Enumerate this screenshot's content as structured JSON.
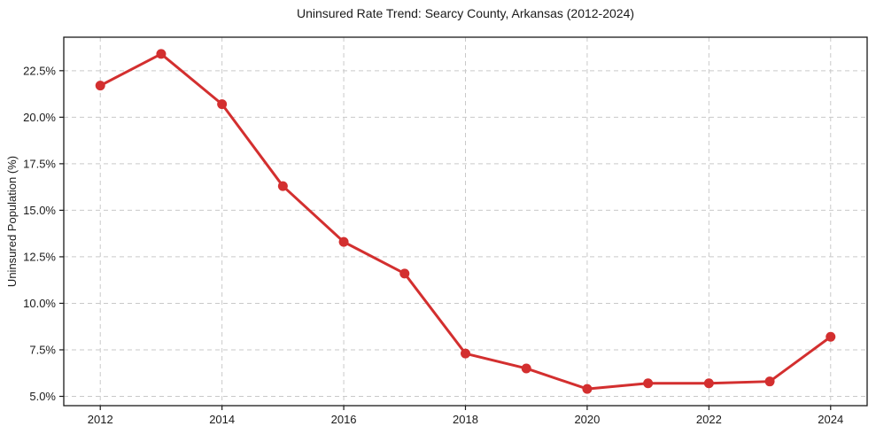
{
  "chart_data": {
    "type": "line",
    "title": "Uninsured Rate Trend: Searcy County, Arkansas (2012-2024)",
    "xlabel": "",
    "ylabel": "Uninsured Population (%)",
    "x": [
      2012,
      2013,
      2014,
      2015,
      2016,
      2017,
      2018,
      2019,
      2020,
      2021,
      2022,
      2023,
      2024
    ],
    "values": [
      21.7,
      23.4,
      20.7,
      16.3,
      13.3,
      11.6,
      7.3,
      6.5,
      5.4,
      5.7,
      5.7,
      5.8,
      8.2
    ],
    "xticks": [
      2012,
      2014,
      2016,
      2018,
      2020,
      2022,
      2024
    ],
    "yticks": [
      5.0,
      7.5,
      10.0,
      12.5,
      15.0,
      17.5,
      20.0,
      22.5
    ],
    "ytick_labels": [
      "5.0%",
      "7.5%",
      "10.0%",
      "12.5%",
      "15.0%",
      "17.5%",
      "20.0%",
      "22.5%"
    ],
    "xlim": [
      2011.4,
      2024.6
    ],
    "ylim": [
      4.5,
      24.3
    ],
    "grid": true,
    "legend_position": "none",
    "colors": {
      "line": "#d32f2f",
      "marker": "#d32f2f",
      "grid": "#c9c9c9",
      "spine": "#1a1a1a",
      "text": "#1a1a1a",
      "background": "#ffffff"
    }
  }
}
